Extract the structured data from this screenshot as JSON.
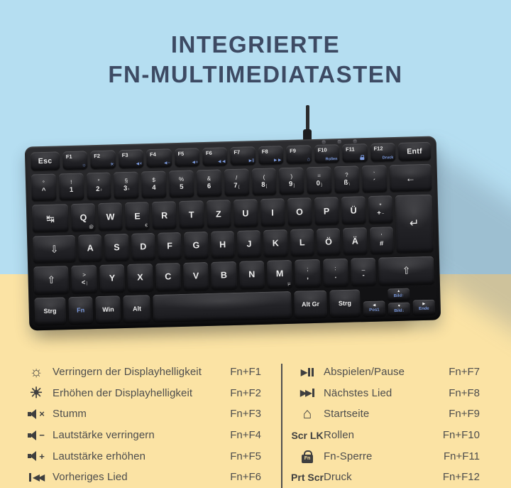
{
  "title": {
    "line1": "INTEGRIERTE",
    "line2": "FN-MULTIMEDIATASTEN"
  },
  "colors": {
    "bg_top": "#b5def1",
    "bg_bottom": "#fbe3a4",
    "title": "#3d4a63",
    "key_accent": "#7d9ce0",
    "list_text": "#4d4d4d",
    "icon": "#3f3f3f"
  },
  "keyboard": {
    "fn_row": [
      {
        "label": "Esc",
        "w": 1.15
      },
      {
        "label": "F1",
        "icon": "brightness-down"
      },
      {
        "label": "F2",
        "icon": "brightness-up"
      },
      {
        "label": "F3",
        "icon": "mute"
      },
      {
        "label": "F4",
        "icon": "volume-down"
      },
      {
        "label": "F5",
        "icon": "volume-up"
      },
      {
        "label": "F6",
        "icon": "previous-track"
      },
      {
        "label": "F7",
        "icon": "play-pause"
      },
      {
        "label": "F8",
        "icon": "next-track"
      },
      {
        "label": "F9",
        "icon": "home"
      },
      {
        "label": "F10",
        "sub": "Rollen"
      },
      {
        "label": "F11",
        "icon": "fn-lock"
      },
      {
        "label": "F12",
        "sub": "Druck"
      },
      {
        "label": "Entf",
        "w": 1.3
      }
    ],
    "rows": [
      [
        {
          "t": "°",
          "b": "^"
        },
        {
          "t": "!",
          "b": "1"
        },
        {
          "t": "\"",
          "b": "2",
          "a": "²"
        },
        {
          "t": "§",
          "b": "3",
          "a": "³"
        },
        {
          "t": "$",
          "b": "4"
        },
        {
          "t": "%",
          "b": "5"
        },
        {
          "t": "&",
          "b": "6"
        },
        {
          "t": "/",
          "b": "7",
          "a": "{"
        },
        {
          "t": "(",
          "b": "8",
          "a": "["
        },
        {
          "t": ")",
          "b": "9",
          "a": "]"
        },
        {
          "t": "=",
          "b": "0",
          "a": "}"
        },
        {
          "t": "?",
          "b": "ß",
          "a": "\\"
        },
        {
          "t": "`",
          "b": "´"
        },
        {
          "g": "←",
          "w": 1.7,
          "id": "backspace"
        }
      ],
      [
        {
          "g": "↹",
          "w": 1.5,
          "id": "tab"
        },
        {
          "m": "Q",
          "a": "@"
        },
        {
          "m": "W"
        },
        {
          "m": "E",
          "a": "€"
        },
        {
          "m": "R"
        },
        {
          "m": "T"
        },
        {
          "m": "Z"
        },
        {
          "m": "U"
        },
        {
          "m": "I"
        },
        {
          "m": "O"
        },
        {
          "m": "P"
        },
        {
          "m": "Ü"
        },
        {
          "t": "*",
          "b": "+",
          "a": "~"
        }
      ],
      [
        {
          "g": "⇩",
          "w": 1.8,
          "id": "caps-lock"
        },
        {
          "m": "A"
        },
        {
          "m": "S"
        },
        {
          "m": "D"
        },
        {
          "m": "F"
        },
        {
          "m": "G"
        },
        {
          "m": "H"
        },
        {
          "m": "J"
        },
        {
          "m": "K"
        },
        {
          "m": "L"
        },
        {
          "m": "Ö"
        },
        {
          "m": "Ä"
        },
        {
          "t": "'",
          "b": "#"
        }
      ],
      [
        {
          "g": "⇧",
          "w": 1.4,
          "id": "shift-left"
        },
        {
          "t": ">",
          "b": "<",
          "a": "|"
        },
        {
          "m": "Y"
        },
        {
          "m": "X"
        },
        {
          "m": "C"
        },
        {
          "m": "V"
        },
        {
          "m": "B"
        },
        {
          "m": "N"
        },
        {
          "m": "M",
          "a": "µ"
        },
        {
          "t": ";",
          "b": ","
        },
        {
          "t": ":",
          "b": "."
        },
        {
          "t": "_",
          "b": "-"
        },
        {
          "g": "⇧",
          "w": 2.2,
          "id": "shift-right"
        }
      ]
    ],
    "bottom_row": [
      {
        "m": "Strg",
        "mod": true,
        "w": 1.25
      },
      {
        "m": "Fn",
        "mod": true,
        "accent": true
      },
      {
        "m": "Win",
        "mod": true
      },
      {
        "m": "Alt",
        "mod": true,
        "w": 1.1
      },
      {
        "id": "space",
        "w": 5.6
      },
      {
        "m": "Alt Gr",
        "mod": true,
        "w": 1.3
      },
      {
        "m": "Strg",
        "mod": true,
        "w": 1.25
      }
    ],
    "enter_glyph": "↵",
    "nav": {
      "pos1": "Pos1",
      "bild_up": "Bild↑",
      "bild_down": "Bild↓",
      "ende": "Ende"
    }
  },
  "icons": {
    "fn_lock_text": "Fn"
  },
  "shortcuts": {
    "left": [
      {
        "icon": "brightness-down",
        "label": "Verringern der Displayhelligkeit",
        "combo": "Fn+F1"
      },
      {
        "icon": "brightness-up",
        "label": "Erhöhen der Displayhelligkeit",
        "combo": "Fn+F2"
      },
      {
        "icon": "mute",
        "label": "Stumm",
        "combo": "Fn+F3"
      },
      {
        "icon": "volume-down",
        "label": "Lautstärke verringern",
        "combo": "Fn+F4"
      },
      {
        "icon": "volume-up",
        "label": "Lautstärke erhöhen",
        "combo": "Fn+F5"
      },
      {
        "icon": "previous-track",
        "label": "Vorheriges Lied",
        "combo": "Fn+F6"
      }
    ],
    "right": [
      {
        "icon": "play-pause",
        "label": "Abspielen/Pause",
        "combo": "Fn+F7"
      },
      {
        "icon": "next-track",
        "label": "Nächstes Lied",
        "combo": "Fn+F8"
      },
      {
        "icon": "home",
        "label": "Startseite",
        "combo": "Fn+F9"
      },
      {
        "icon_text": "Scr LK",
        "label": "Rollen",
        "combo": "Fn+F10"
      },
      {
        "icon": "fn-lock",
        "label": "Fn-Sperre",
        "combo": "Fn+F11"
      },
      {
        "icon_text": "Prt Scr",
        "label": "Druck",
        "combo": "Fn+F12"
      }
    ]
  }
}
